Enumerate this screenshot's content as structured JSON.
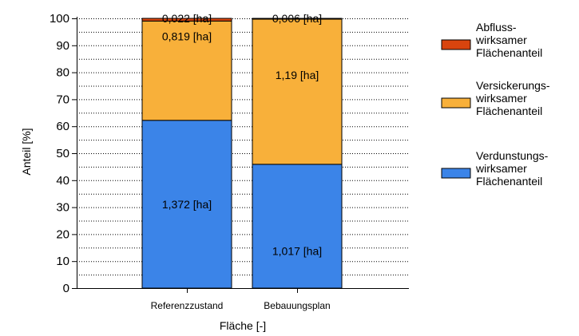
{
  "chart_data": {
    "type": "bar",
    "stacked": true,
    "categories": [
      "Referenzzustand",
      "Bebauungsplan"
    ],
    "ylabel": "Anteil [%]",
    "xlabel": "Fläche [-]",
    "ylim": [
      0,
      100
    ],
    "yticks": [
      0,
      10,
      20,
      30,
      40,
      50,
      60,
      70,
      80,
      90,
      100
    ],
    "grid": "dotted-horizontal",
    "legend_position": "right",
    "series": [
      {
        "name": "Verdunstungs-wirksamer Flächenanteil",
        "legend_lines": [
          "Verdunstungs-",
          "wirksamer",
          "Flächenanteil"
        ],
        "color": "#3b84e8",
        "values": [
          62.2,
          45.9
        ],
        "labels": [
          "1,372 [ha]",
          "1,017 [ha]"
        ]
      },
      {
        "name": "Versickerungs-wirksamer Flächenanteil",
        "legend_lines": [
          "Versickerungs-",
          "wirksamer",
          "Flächenanteil"
        ],
        "color": "#f8b03a",
        "values": [
          36.8,
          53.8
        ],
        "labels": [
          "0,819 [ha]",
          "1,19 [ha]"
        ]
      },
      {
        "name": "Abfluss-wirksamer Flächenanteil",
        "legend_lines": [
          "Abfluss-",
          "wirksamer",
          "Flächenanteil"
        ],
        "color": "#d8440e",
        "values": [
          1.0,
          0.3
        ],
        "labels": [
          "0,022 [ha]",
          "0,006 [ha]"
        ]
      }
    ]
  }
}
